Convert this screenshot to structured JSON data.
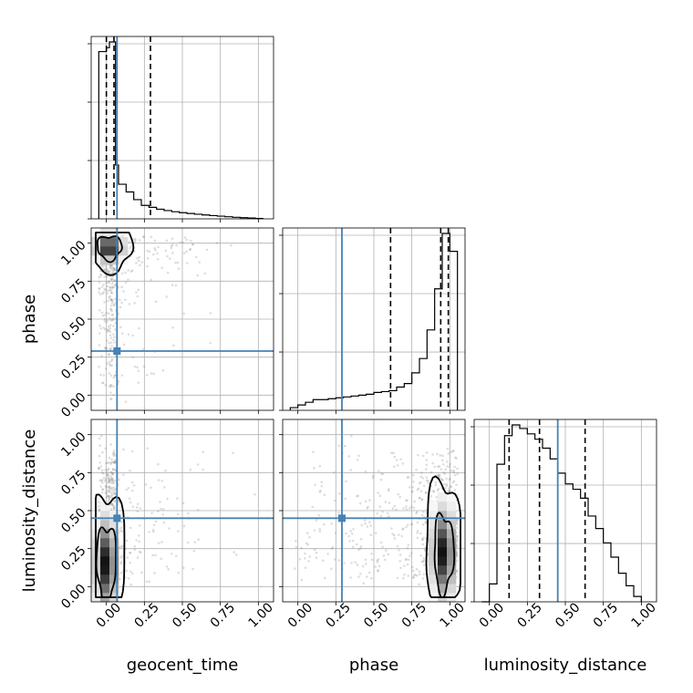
{
  "chart_data": {
    "type": "corner",
    "parameters": [
      "geocent_time",
      "phase",
      "luminosity_distance"
    ],
    "truths": {
      "geocent_time": 0.07,
      "phase": 0.29,
      "luminosity_distance": 0.45
    },
    "quantiles": {
      "geocent_time": [
        0.0,
        0.05,
        0.29
      ],
      "phase": [
        0.61,
        0.94,
        0.99
      ],
      "luminosity_distance": [
        0.13,
        0.33,
        0.63
      ]
    },
    "tick_labels": [
      "0.00",
      "0.25",
      "0.50",
      "0.75",
      "1.00"
    ],
    "tick_values": [
      0.0,
      0.25,
      0.5,
      0.75,
      1.0
    ],
    "xlim": [
      -0.1,
      1.1
    ],
    "ylim": [
      -0.1,
      1.1
    ],
    "colors": {
      "truth": "#4682b4",
      "contour": "#000000",
      "samples": "#888888"
    },
    "histograms": {
      "geocent_time": {
        "bin_edges": [
          -0.05,
          0.0,
          0.02,
          0.04,
          0.06,
          0.08,
          0.13,
          0.18,
          0.23,
          0.28,
          0.33,
          0.38,
          0.43,
          0.48,
          0.53,
          0.58,
          0.63,
          0.68,
          0.73,
          0.78,
          0.83,
          0.88,
          0.93,
          0.98,
          1.03
        ],
        "counts": [
          0.87,
          0.89,
          0.92,
          0.92,
          0.28,
          0.18,
          0.14,
          0.1,
          0.07,
          0.06,
          0.05,
          0.043,
          0.037,
          0.032,
          0.028,
          0.024,
          0.02,
          0.017,
          0.014,
          0.011,
          0.008,
          0.006,
          0.004,
          0.002
        ]
      },
      "phase": {
        "bin_edges": [
          -0.05,
          0.0,
          0.05,
          0.1,
          0.15,
          0.2,
          0.25,
          0.3,
          0.35,
          0.4,
          0.45,
          0.5,
          0.55,
          0.6,
          0.65,
          0.7,
          0.75,
          0.8,
          0.85,
          0.9,
          0.95,
          1.0,
          1.05
        ],
        "counts": [
          0.015,
          0.03,
          0.045,
          0.06,
          0.06,
          0.065,
          0.07,
          0.075,
          0.08,
          0.085,
          0.09,
          0.1,
          0.105,
          0.11,
          0.13,
          0.15,
          0.21,
          0.29,
          0.45,
          0.68,
          0.99,
          0.89
        ]
      },
      "luminosity_distance": {
        "bin_edges": [
          -0.05,
          0.0,
          0.05,
          0.1,
          0.15,
          0.2,
          0.25,
          0.3,
          0.35,
          0.4,
          0.45,
          0.5,
          0.55,
          0.6,
          0.65,
          0.7,
          0.75,
          0.8,
          0.85,
          0.9,
          0.95,
          1.0
        ],
        "counts": [
          0.0,
          0.1,
          0.77,
          0.93,
          0.99,
          0.97,
          0.94,
          0.91,
          0.86,
          0.8,
          0.72,
          0.66,
          0.63,
          0.58,
          0.48,
          0.41,
          0.33,
          0.25,
          0.16,
          0.09,
          0.03
        ]
      }
    },
    "contour_levels": [
      0.39,
      0.86
    ],
    "density_peaks": {
      "geocent_time_vs_phase": {
        "x": 0.02,
        "y": 0.97
      },
      "geocent_time_vs_luminosity_distance": {
        "x": 0.0,
        "y": 0.15
      },
      "phase_vs_luminosity_distance": {
        "x": 0.96,
        "y": 0.22
      }
    }
  }
}
